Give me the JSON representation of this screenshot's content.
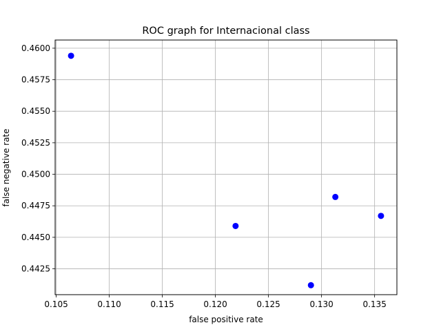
{
  "chart_data": {
    "type": "scatter",
    "title": "ROC graph for Internacional class",
    "xlabel": "false positive rate",
    "ylabel": "false negative rate",
    "xlim": [
      0.1049,
      0.1371
    ],
    "ylim": [
      0.44045,
      0.46065
    ],
    "x_ticks": [
      0.105,
      0.11,
      0.115,
      0.12,
      0.125,
      0.13,
      0.135
    ],
    "x_tick_labels": [
      "0.105",
      "0.110",
      "0.115",
      "0.120",
      "0.125",
      "0.130",
      "0.135"
    ],
    "y_ticks": [
      0.4425,
      0.445,
      0.4475,
      0.45,
      0.4525,
      0.455,
      0.4575,
      0.46
    ],
    "y_tick_labels": [
      "0.4425",
      "0.4450",
      "0.4475",
      "0.4500",
      "0.4525",
      "0.4550",
      "0.4575",
      "0.4600"
    ],
    "grid": true,
    "legend": false,
    "series": [
      {
        "color": "#0000ff",
        "marker": "circle",
        "points": [
          {
            "x": 0.1064,
            "y": 0.4594
          },
          {
            "x": 0.1219,
            "y": 0.4459
          },
          {
            "x": 0.129,
            "y": 0.4412
          },
          {
            "x": 0.1313,
            "y": 0.4482
          },
          {
            "x": 0.1356,
            "y": 0.4467
          }
        ]
      }
    ],
    "colors": {
      "grid": "#b0b0b0",
      "axes": "#000000",
      "background": "#ffffff"
    }
  }
}
